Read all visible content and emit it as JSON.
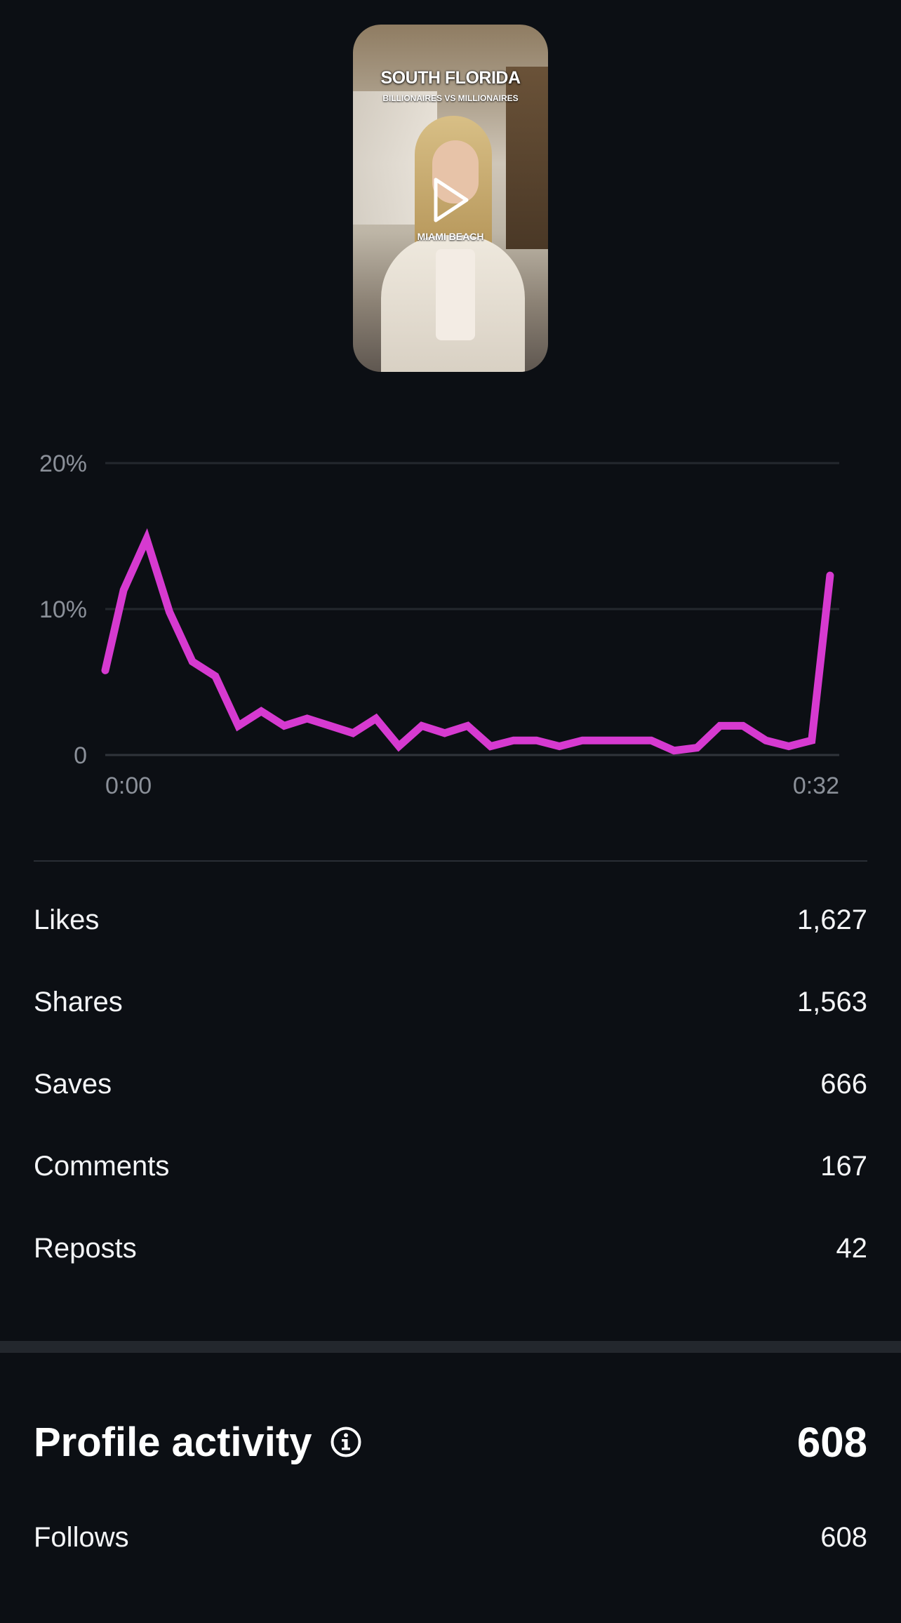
{
  "thumbnail": {
    "title": "SOUTH FLORIDA",
    "subtitle": "BILLIONAIRES VS MILLIONAIRES",
    "caption": "MIAMI BEACH"
  },
  "chart_data": {
    "type": "line",
    "xlabel": "",
    "ylabel": "",
    "y_ticks": [
      "20%",
      "10%",
      "0"
    ],
    "x_tick_labels": [
      "0:00",
      "0:32"
    ],
    "ylim": [
      0,
      20
    ],
    "xlim": [
      0,
      32
    ],
    "grid": true,
    "color": "#d63ad0",
    "series": [
      {
        "values": [
          {
            "x": 0,
            "y": 5.8
          },
          {
            "x": 0.8,
            "y": 11.3
          },
          {
            "x": 1.8,
            "y": 14.8
          },
          {
            "x": 2.8,
            "y": 9.8
          },
          {
            "x": 3.8,
            "y": 6.4
          },
          {
            "x": 4.8,
            "y": 5.4
          },
          {
            "x": 5.8,
            "y": 2.0
          },
          {
            "x": 6.8,
            "y": 3.0
          },
          {
            "x": 7.8,
            "y": 2.0
          },
          {
            "x": 8.8,
            "y": 2.5
          },
          {
            "x": 9.8,
            "y": 2.0
          },
          {
            "x": 10.8,
            "y": 1.5
          },
          {
            "x": 11.8,
            "y": 2.5
          },
          {
            "x": 12.8,
            "y": 0.6
          },
          {
            "x": 13.8,
            "y": 2.0
          },
          {
            "x": 14.8,
            "y": 1.5
          },
          {
            "x": 15.8,
            "y": 2.0
          },
          {
            "x": 16.8,
            "y": 0.6
          },
          {
            "x": 17.8,
            "y": 1.0
          },
          {
            "x": 18.8,
            "y": 1.0
          },
          {
            "x": 19.8,
            "y": 0.6
          },
          {
            "x": 20.8,
            "y": 1.0
          },
          {
            "x": 21.8,
            "y": 1.0
          },
          {
            "x": 22.8,
            "y": 1.0
          },
          {
            "x": 23.8,
            "y": 1.0
          },
          {
            "x": 24.8,
            "y": 0.3
          },
          {
            "x": 25.8,
            "y": 0.5
          },
          {
            "x": 26.8,
            "y": 2.0
          },
          {
            "x": 27.8,
            "y": 2.0
          },
          {
            "x": 28.8,
            "y": 1.0
          },
          {
            "x": 29.8,
            "y": 0.6
          },
          {
            "x": 30.8,
            "y": 1.0
          },
          {
            "x": 31.6,
            "y": 12.3
          }
        ]
      }
    ]
  },
  "stats": [
    {
      "label": "Likes",
      "value": "1,627"
    },
    {
      "label": "Shares",
      "value": "1,563"
    },
    {
      "label": "Saves",
      "value": "666"
    },
    {
      "label": "Comments",
      "value": "167"
    },
    {
      "label": "Reposts",
      "value": "42"
    }
  ],
  "profile_activity": {
    "title": "Profile activity",
    "total": "608",
    "info_icon": "info-icon",
    "follows_label": "Follows",
    "follows_value": "608"
  },
  "colors": {
    "background": "#0c0f14",
    "line": "#d63ad0",
    "grid": "#2a2e35",
    "axis_text": "#8b9099"
  }
}
